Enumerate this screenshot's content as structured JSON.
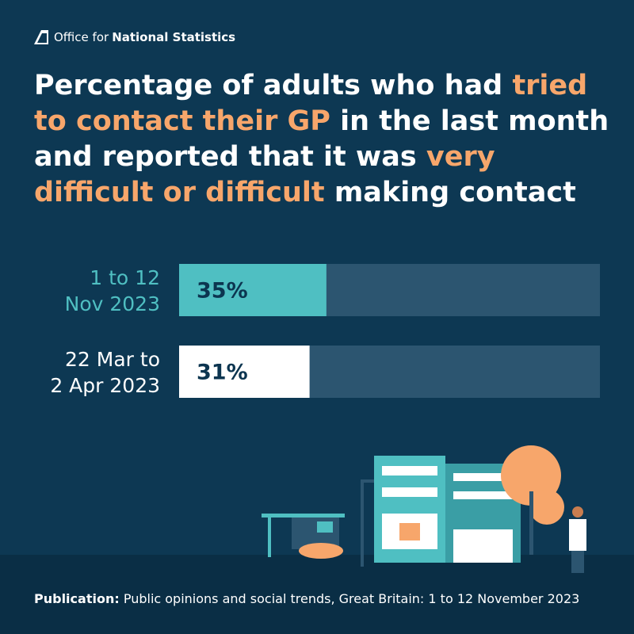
{
  "header": {
    "logo_text": [
      "Office for",
      "National Statistics"
    ]
  },
  "chart_data": {
    "type": "hbar",
    "title": [
      {
        "text": "Percentage of adults who had ",
        "color": "#ffffff"
      },
      {
        "text": "tried to contact their GP",
        "color": "#f7a66b"
      },
      {
        "text": " in the last month and reported that it was ",
        "color": "#ffffff"
      },
      {
        "text": "very difficult or difficult",
        "color": "#f7a66b"
      },
      {
        "text": " making contact",
        "color": "#ffffff"
      }
    ],
    "categories": [
      "1 to 12\nNov 2023",
      "22 Mar to\n2 Apr 2023"
    ],
    "values": [
      35,
      31
    ],
    "value_labels": [
      "35%",
      "31%"
    ],
    "colors": [
      "#4fbfc2",
      "#ffffff"
    ],
    "track_color": "#2c5570",
    "xlim": [
      0,
      100
    ]
  },
  "footer": {
    "label": "Publication:",
    "text": "Public opinions and social trends, Great Britain: 1 to 12 November 2023"
  }
}
